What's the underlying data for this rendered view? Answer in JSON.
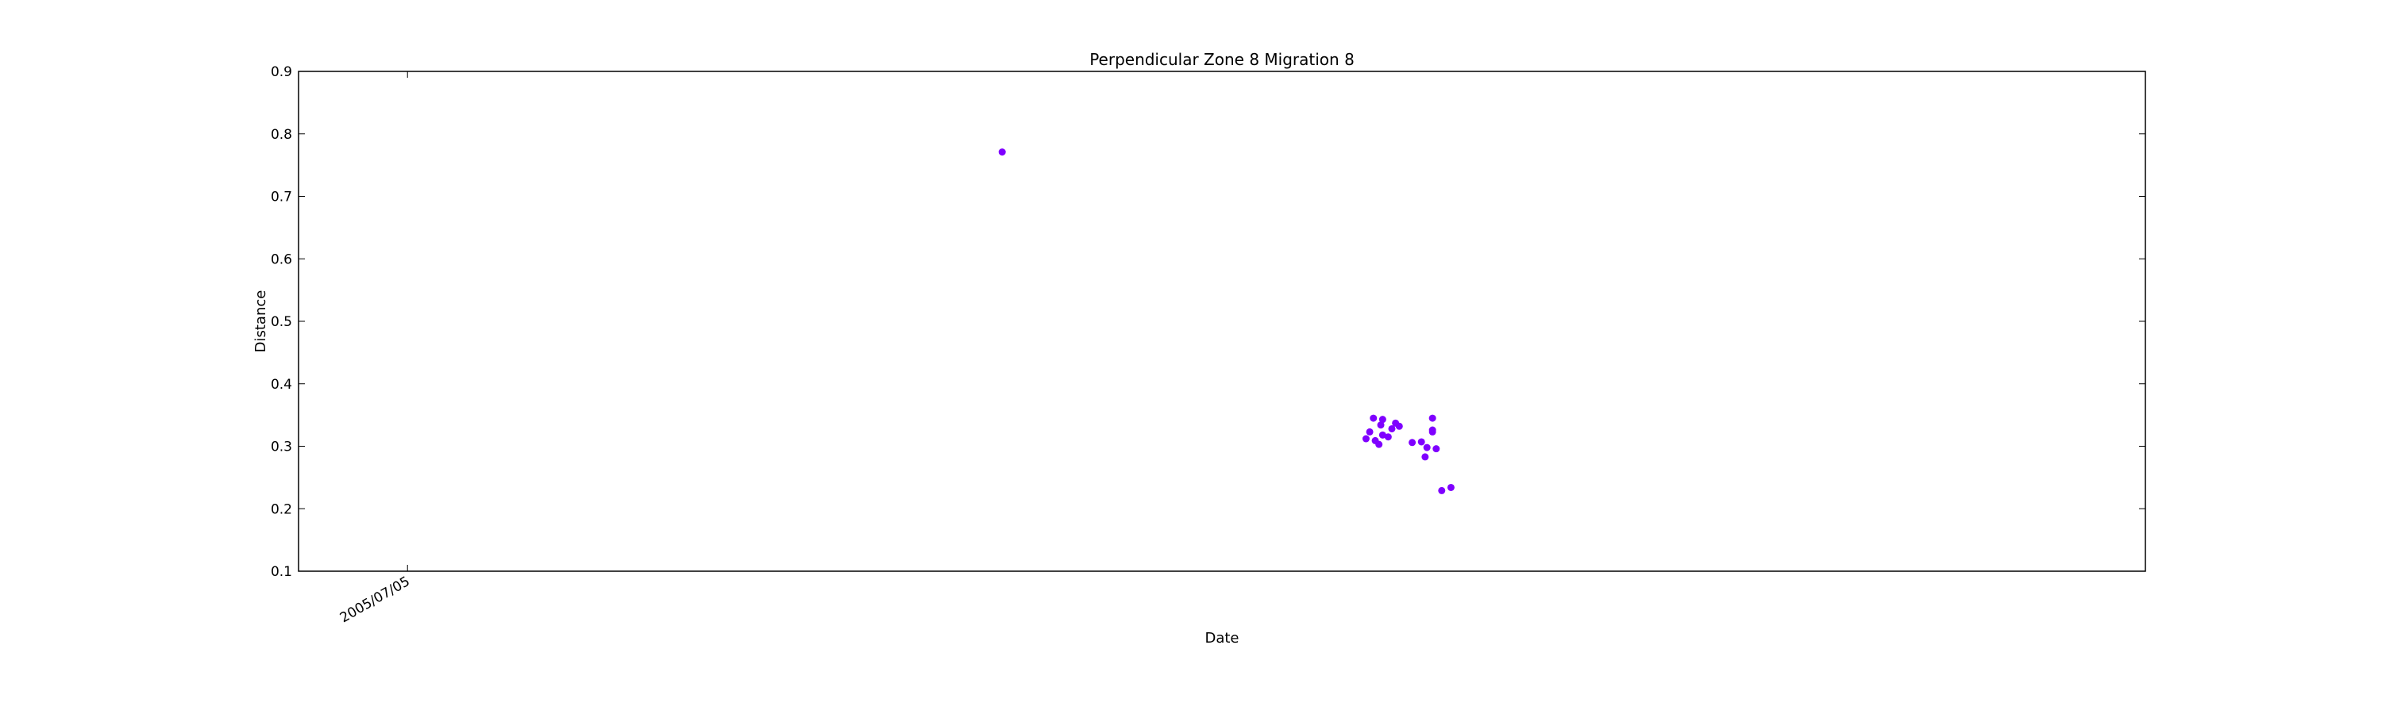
{
  "chart_data": {
    "type": "scatter",
    "title": "Perpendicular Zone 8 Migration 8",
    "xlabel": "Date",
    "ylabel": "Distance",
    "ylim": [
      0.1,
      0.9
    ],
    "yticks": [
      "0.1",
      "0.2",
      "0.3",
      "0.4",
      "0.5",
      "0.6",
      "0.7",
      "0.8",
      "0.9"
    ],
    "xticks": [
      {
        "label": "2005/07/05",
        "x": 0.059
      }
    ],
    "xlim": [
      0,
      1
    ],
    "grid": false,
    "marker_color": "#7f00ff",
    "points": [
      {
        "x": 0.381,
        "y": 0.771
      },
      {
        "x": 0.582,
        "y": 0.345
      },
      {
        "x": 0.586,
        "y": 0.334
      },
      {
        "x": 0.58,
        "y": 0.323
      },
      {
        "x": 0.578,
        "y": 0.312
      },
      {
        "x": 0.583,
        "y": 0.309
      },
      {
        "x": 0.585,
        "y": 0.303
      },
      {
        "x": 0.587,
        "y": 0.318
      },
      {
        "x": 0.59,
        "y": 0.315
      },
      {
        "x": 0.587,
        "y": 0.343
      },
      {
        "x": 0.592,
        "y": 0.328
      },
      {
        "x": 0.596,
        "y": 0.332
      },
      {
        "x": 0.594,
        "y": 0.337
      },
      {
        "x": 0.603,
        "y": 0.306
      },
      {
        "x": 0.608,
        "y": 0.307
      },
      {
        "x": 0.611,
        "y": 0.298
      },
      {
        "x": 0.61,
        "y": 0.283
      },
      {
        "x": 0.616,
        "y": 0.296
      },
      {
        "x": 0.614,
        "y": 0.326
      },
      {
        "x": 0.614,
        "y": 0.323
      },
      {
        "x": 0.614,
        "y": 0.345
      },
      {
        "x": 0.619,
        "y": 0.229
      },
      {
        "x": 0.624,
        "y": 0.234
      }
    ]
  }
}
